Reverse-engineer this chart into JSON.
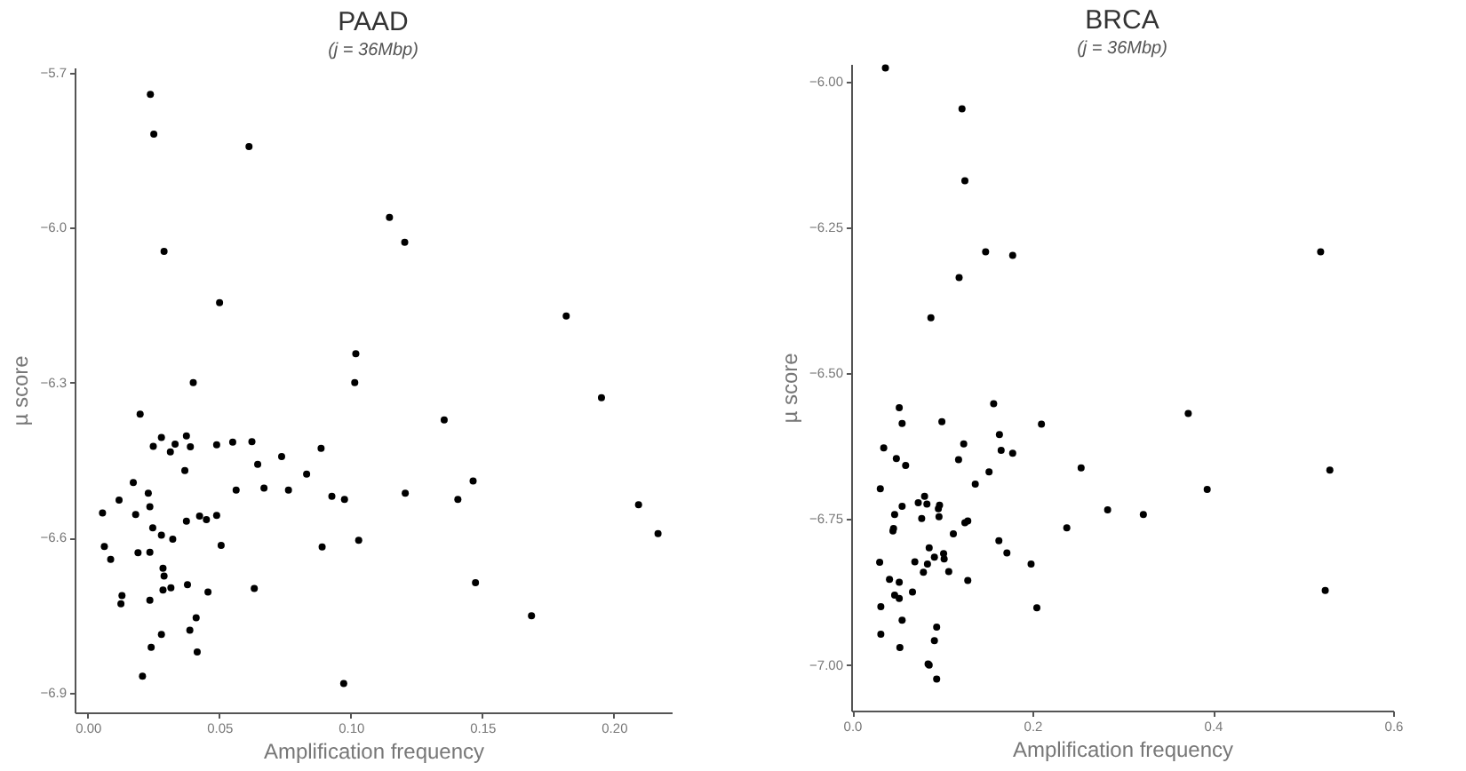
{
  "chart_data": [
    {
      "type": "scatter",
      "title": "PAAD",
      "subtitle": "(j = 36Mbp)",
      "xlabel": "Amplification frequency",
      "ylabel": "µ score",
      "marker": "circle",
      "xlim": [
        -0.005,
        0.222
      ],
      "ylim": [
        -6.938,
        -5.69
      ],
      "xticks": [
        {
          "value": 0,
          "label": "0.00"
        },
        {
          "value": 0.05,
          "label": "0.05"
        },
        {
          "value": 0.1,
          "label": "0.10"
        },
        {
          "value": 0.15,
          "label": "0.15"
        },
        {
          "value": 0.2,
          "label": "0.20"
        }
      ],
      "yticks": [
        {
          "value": -5.7,
          "label": "−5.7"
        },
        {
          "value": -6.0,
          "label": "−6.0"
        },
        {
          "value": -6.3,
          "label": "−6.3"
        },
        {
          "value": -6.6,
          "label": "−6.6"
        },
        {
          "value": -6.9,
          "label": "−6.9"
        }
      ],
      "x": [
        0.0238,
        0.0251,
        0.0613,
        0.1147,
        0.1205,
        0.029,
        0.0501,
        0.1819,
        0.1019,
        0.0401,
        0.1015,
        0.1953,
        0.0199,
        0.1355,
        0.028,
        0.0375,
        0.0249,
        0.0332,
        0.0314,
        0.039,
        0.049,
        0.0551,
        0.0624,
        0.0887,
        0.0737,
        0.0646,
        0.0369,
        0.0832,
        0.0173,
        0.1465,
        0.0564,
        0.067,
        0.0763,
        0.1207,
        0.023,
        0.0928,
        0.0119,
        0.0976,
        0.1407,
        0.0236,
        0.2094,
        0.0056,
        0.0182,
        0.0425,
        0.049,
        0.0375,
        0.0451,
        0.0247,
        0.2168,
        0.028,
        0.0323,
        0.103,
        0.0063,
        0.0507,
        0.0891,
        0.0191,
        0.0236,
        0.0087,
        0.0286,
        0.029,
        0.1474,
        0.0379,
        0.0633,
        0.0316,
        0.0286,
        0.013,
        0.0457,
        0.0126,
        0.0236,
        0.1687,
        0.0412,
        0.0388,
        0.028,
        0.0241,
        0.0416,
        0.0208,
        0.0973
      ],
      "series": [
        {
          "color": "#000000",
          "values": [
            -5.742,
            -5.819,
            -5.843,
            -5.98,
            -6.028,
            -6.046,
            -6.145,
            -6.171,
            -6.244,
            -6.3,
            -6.3,
            -6.329,
            -6.361,
            -6.372,
            -6.406,
            -6.403,
            -6.423,
            -6.419,
            -6.434,
            -6.424,
            -6.42,
            -6.415,
            -6.414,
            -6.427,
            -6.443,
            -6.458,
            -6.47,
            -6.477,
            -6.493,
            -6.49,
            -6.508,
            -6.504,
            -6.508,
            -6.514,
            -6.514,
            -6.52,
            -6.527,
            -6.526,
            -6.526,
            -6.54,
            -6.536,
            -6.552,
            -6.555,
            -6.558,
            -6.557,
            -6.568,
            -6.565,
            -6.581,
            -6.592,
            -6.595,
            -6.603,
            -6.605,
            -6.617,
            -6.615,
            -6.618,
            -6.629,
            -6.628,
            -6.642,
            -6.659,
            -6.674,
            -6.687,
            -6.691,
            -6.698,
            -6.697,
            -6.701,
            -6.712,
            -6.705,
            -6.728,
            -6.721,
            -6.751,
            -6.755,
            -6.779,
            -6.787,
            -6.812,
            -6.821,
            -6.868,
            -6.882
          ]
        }
      ]
    },
    {
      "type": "scatter",
      "title": "BRCA",
      "subtitle": "(j = 36Mbp)",
      "xlabel": "Amplification frequency",
      "ylabel": "µ score",
      "marker": "circle",
      "xlim": [
        -0.001,
        0.6
      ],
      "ylim": [
        -7.078,
        -5.97
      ],
      "xticks": [
        {
          "value": 0,
          "label": "0.0"
        },
        {
          "value": 0.2,
          "label": "0.2"
        },
        {
          "value": 0.4,
          "label": "0.4"
        },
        {
          "value": 0.6,
          "label": "0.6"
        }
      ],
      "yticks": [
        {
          "value": -6.0,
          "label": "−6.00"
        },
        {
          "value": -6.25,
          "label": "−6.25"
        },
        {
          "value": -6.5,
          "label": "−6.50"
        },
        {
          "value": -6.75,
          "label": "−6.75"
        },
        {
          "value": -7.0,
          "label": "−7.00"
        }
      ],
      "x": [
        0.037,
        0.1219,
        0.1251,
        0.1481,
        0.1781,
        0.5196,
        0.1187,
        0.0874,
        0.0523,
        0.157,
        0.0555,
        0.0996,
        0.21,
        0.3728,
        0.1634,
        0.0351,
        0.1238,
        0.1653,
        0.1781,
        0.0491,
        0.1181,
        0.0594,
        0.254,
        0.5298,
        0.1519,
        0.1366,
        0.0313,
        0.3938,
        0.0804,
        0.097,
        0.0734,
        0.083,
        0.0555,
        0.0957,
        0.2834,
        0.0472,
        0.323,
        0.0772,
        0.0964,
        0.1283,
        0.1251,
        0.046,
        0.0453,
        0.2381,
        0.1123,
        0.1628,
        0.0855,
        0.1717,
        0.1015,
        0.1021,
        0.0913,
        0.0306,
        0.0696,
        0.0836,
        0.1985,
        0.0791,
        0.1072,
        0.0415,
        0.0523,
        0.1283,
        0.067,
        0.0472,
        0.0523,
        0.5247,
        0.0319,
        0.2049,
        0.0555,
        0.0938,
        0.0319,
        0.0913,
        0.053,
        0.0843,
        0.0855,
        0.0938
      ],
      "series": [
        {
          "color": "#000000",
          "values": [
            -5.977,
            -6.047,
            -6.17,
            -6.292,
            -6.298,
            -6.292,
            -6.336,
            -6.405,
            -6.559,
            -6.552,
            -6.586,
            -6.583,
            -6.587,
            -6.569,
            -6.605,
            -6.628,
            -6.621,
            -6.632,
            -6.637,
            -6.646,
            -6.648,
            -6.658,
            -6.662,
            -6.666,
            -6.669,
            -6.69,
            -6.698,
            -6.699,
            -6.711,
            -6.726,
            -6.722,
            -6.724,
            -6.728,
            -6.732,
            -6.734,
            -6.742,
            -6.742,
            -6.749,
            -6.746,
            -6.753,
            -6.756,
            -6.766,
            -6.77,
            -6.765,
            -6.775,
            -6.787,
            -6.799,
            -6.808,
            -6.809,
            -6.818,
            -6.815,
            -6.824,
            -6.823,
            -6.827,
            -6.827,
            -6.841,
            -6.84,
            -6.853,
            -6.858,
            -6.855,
            -6.875,
            -6.88,
            -6.886,
            -6.872,
            -6.9,
            -6.902,
            -6.923,
            -6.935,
            -6.947,
            -6.958,
            -6.97,
            -6.998,
            -7.0,
            -7.024
          ]
        }
      ]
    }
  ]
}
